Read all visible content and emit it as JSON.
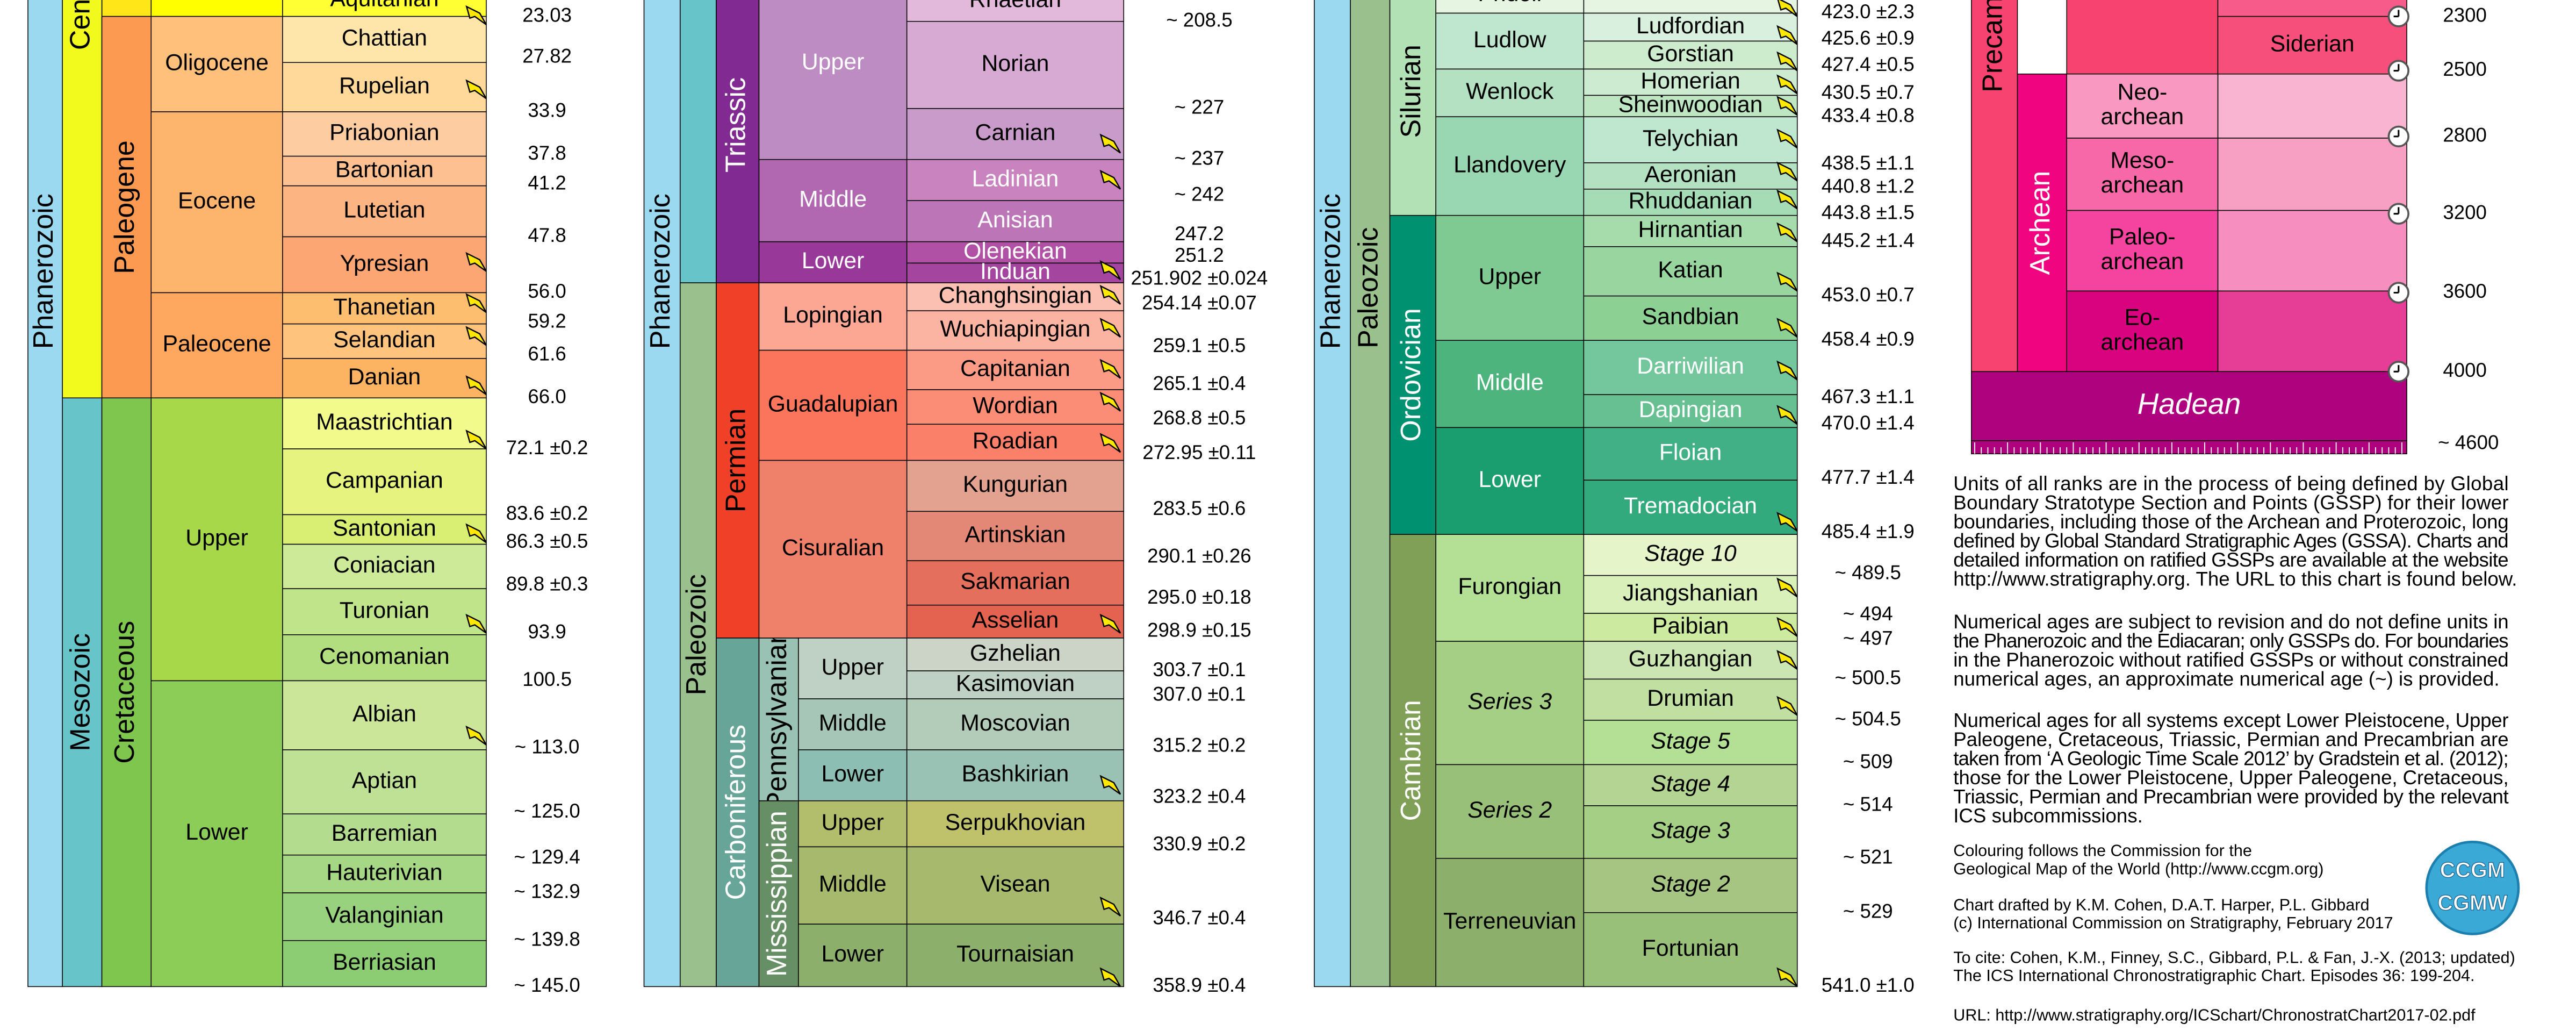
{
  "panels": [
    {
      "columns": [
        [
          "Phanerozoic"
        ],
        [
          "Cenozoic",
          "Mesozoic"
        ],
        [
          "Paleogene",
          "Cretaceous"
        ],
        [
          "Oligocene",
          "Eocene",
          "Paleocene",
          "Upper",
          "Lower"
        ],
        [
          "Aquitanian",
          "Chattian",
          "Rupelian",
          "Priabonian",
          "Bartonian",
          "Lutetian",
          "Ypresian",
          "Thanetian",
          "Selandian",
          "Danian",
          "Maastrichtian",
          "Campanian",
          "Santonian",
          "Coniacian",
          "Turonian",
          "Cenomanian",
          "Albian",
          "Aptian",
          "Barremian",
          "Hauterivian",
          "Valanginian",
          "Berriasian"
        ]
      ],
      "ages": [
        "23.03",
        "27.82",
        "33.9",
        "37.8",
        "41.2",
        "47.8",
        "56.0",
        "59.2",
        "61.6",
        "66.0",
        "72.1 ±0.2",
        "83.6 ±0.2",
        "86.3 ±0.5",
        "89.8 ±0.3",
        "93.9",
        "100.5",
        "~ 113.0",
        "~ 125.0",
        "~ 129.4",
        "~ 132.9",
        "~ 139.8",
        "~ 145.0"
      ]
    },
    {
      "columns": [
        [
          "Phanerozoic"
        ],
        [
          "Paleozoic"
        ],
        [
          "Triassic",
          "Permian",
          "Carboniferous"
        ],
        [
          "Pennsylvanian",
          "Mississippian"
        ],
        [
          "Upper",
          "Middle",
          "Lower",
          "Lopingian",
          "Guadalupian",
          "Cisuralian",
          "Upper",
          "Middle",
          "Lower",
          "Upper",
          "Middle",
          "Lower"
        ],
        [
          "Rhaetian",
          "Norian",
          "Carnian",
          "Ladinian",
          "Anisian",
          "Olenekian",
          "Induan",
          "Changhsingian",
          "Wuchiapingian",
          "Capitanian",
          "Wordian",
          "Roadian",
          "Kungurian",
          "Artinskian",
          "Sakmarian",
          "Asselian",
          "Gzhelian",
          "Kasimovian",
          "Moscovian",
          "Bashkirian",
          "Serpukhovian",
          "Visean",
          "Tournaisian"
        ]
      ],
      "ages": [
        "~ 208.5",
        "~ 227",
        "~ 237",
        "~ 242",
        "247.2",
        "251.2",
        "251.902 ±0.024",
        "254.14 ±0.07",
        "259.1 ±0.5",
        "265.1 ±0.4",
        "268.8 ±0.5",
        "272.95 ±0.11",
        "283.5 ±0.6",
        "290.1 ±0.26",
        "295.0 ±0.18",
        "298.9 ±0.15",
        "303.7 ±0.1",
        "307.0 ±0.1",
        "315.2 ±0.2",
        "323.2 ±0.4",
        "330.9 ±0.2",
        "346.7 ±0.4",
        "358.9 ±0.4"
      ]
    },
    {
      "columns": [
        [
          "Phanerozoic"
        ],
        [
          "Paleozoic"
        ],
        [
          "Silurian",
          "Ordovician",
          "Cambrian"
        ],
        [
          "Pridoli",
          "Ludlow",
          "Wenlock",
          "Llandovery",
          "Upper",
          "Middle",
          "Lower",
          "Furongian",
          "Series 3",
          "Series 2",
          "Terreneuvian"
        ],
        [
          "Ludfordian",
          "Gorstian",
          "Homerian",
          "Sheinwoodian",
          "Telychian",
          "Aeronian",
          "Rhuddanian",
          "Hirnantian",
          "Katian",
          "Sandbian",
          "Darriwilian",
          "Dapingian",
          "Floian",
          "Tremadocian",
          "Stage 10",
          "Jiangshanian",
          "Paibian",
          "Guzhangian",
          "Drumian",
          "Stage 5",
          "Stage 4",
          "Stage 3",
          "Stage 2",
          "Fortunian"
        ]
      ],
      "ages": [
        "423.0 ±2.3",
        "425.6 ±0.9",
        "427.4 ±0.5",
        "430.5 ±0.7",
        "433.4 ±0.8",
        "438.5 ±1.1",
        "440.8 ±1.2",
        "443.8 ±1.5",
        "445.2 ±1.4",
        "453.0 ±0.7",
        "458.4 ±0.9",
        "467.3 ±1.1",
        "470.0 ±1.4",
        "477.7 ±1.4",
        "485.4 ±1.9",
        "~ 489.5",
        "~ 494",
        "~ 497",
        "~ 500.5",
        "~ 504.5",
        "~ 509",
        "~ 514",
        "~ 521",
        "~ 529",
        "541.0 ±1.0"
      ]
    },
    {
      "columns": [
        [
          "Precambrian",
          "Archean"
        ],
        [
          [
            "Neo-",
            "archean"
          ],
          [
            "Meso-",
            "archean"
          ],
          [
            "Paleo-",
            "archean"
          ],
          [
            "Eo-",
            "archean"
          ]
        ],
        [
          "Siderian"
        ],
        [
          "Hadean"
        ]
      ],
      "ages": [
        "2300",
        "2500",
        "2800",
        "3200",
        "3600",
        "4000",
        "~ 4600"
      ]
    }
  ],
  "notes": [
    [
      "Units of all ranks are in the process of being defined by Global",
      "Boundary Stratotype Section and Points (GSSP) for their lower",
      "boundaries, including those of the Archean and Proterozoic, long",
      "defined by Global Standard Stratigraphic Ages (GSSA). Charts and",
      "detailed information on ratified GSSPs are available at the website",
      "http://www.stratigraphy.org. The URL to this chart is found below."
    ],
    [
      "Numerical ages are subject to revision and do not define units in",
      "the Phanerozoic and the Ediacaran; only GSSPs do. For boundaries",
      "in the Phanerozoic without ratified GSSPs or without constrained",
      "numerical ages, an approximate numerical age (~) is provided."
    ],
    [
      "Numerical ages for all systems except Lower Pleistocene, Upper",
      "Paleogene, Cretaceous, Triassic, Permian and Precambrian are",
      "taken from ‘A Geologic Time Scale 2012’ by Gradstein et al. (2012);",
      "those for the Lower Pleistocene, Upper Paleogene, Cretaceous,",
      "Triassic, Permian and Precambrian were provided by the relevant",
      "ICS subcommissions."
    ],
    [
      "Colouring follows the Commission for the",
      "Geological Map of the World (http://www.ccgm.org)"
    ],
    [
      "Chart drafted by K.M. Cohen, D.A.T. Harper, P.L. Gibbard",
      "(c) International Commission on Stratigraphy, February 2017"
    ],
    [
      "To cite: Cohen, K.M., Finney, S.C., Gibbard, P.L. & Fan, J.-X. (2013; updated)",
      "The ICS International Chronostratigraphic Chart. Episodes 36: 199-204."
    ],
    [
      "URL: http://www.stratigraphy.org/ICSchart/ChronostratChart2017-02.pdf"
    ]
  ],
  "logo": [
    "CCGM",
    "CGMW"
  ]
}
